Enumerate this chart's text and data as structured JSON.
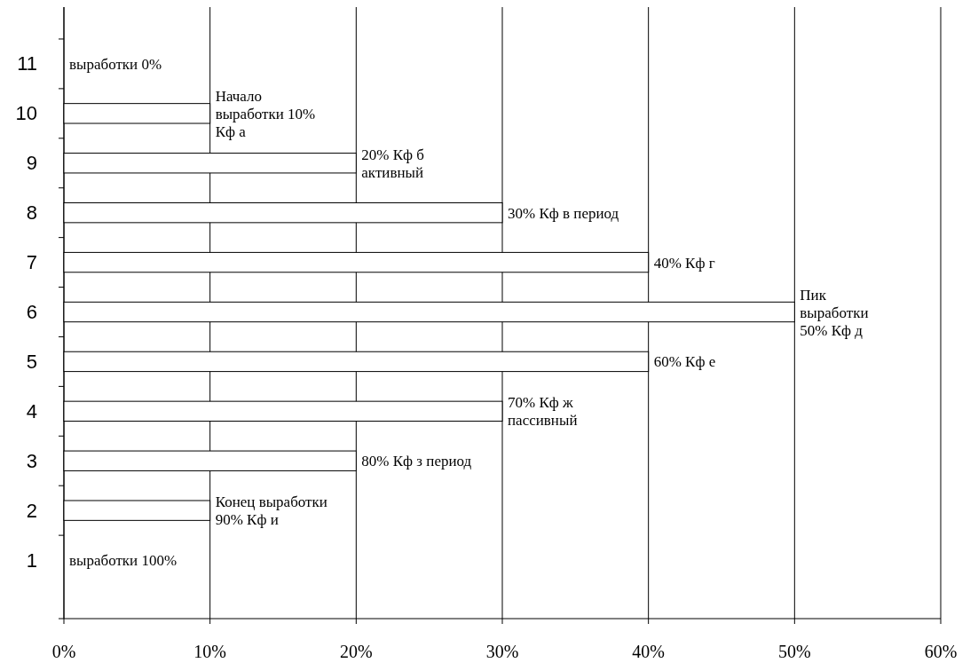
{
  "chart_data": {
    "type": "bar",
    "orientation": "horizontal",
    "categories": [
      "11",
      "10",
      "9",
      "8",
      "7",
      "6",
      "5",
      "4",
      "3",
      "2",
      "1"
    ],
    "values": [
      0,
      10,
      20,
      30,
      40,
      50,
      40,
      30,
      20,
      10,
      0
    ],
    "color": "#ffffff",
    "xlim": [
      0,
      60
    ],
    "xticks": [
      {
        "value": 0,
        "label": "0%"
      },
      {
        "value": 10,
        "label": "10%"
      },
      {
        "value": 20,
        "label": "20%"
      },
      {
        "value": 30,
        "label": "30%"
      },
      {
        "value": 40,
        "label": "40%"
      },
      {
        "value": 50,
        "label": "50%"
      },
      {
        "value": 60,
        "label": "60%"
      }
    ],
    "grid": "x",
    "annotations": [
      {
        "text": "выработки  0%",
        "x": 0,
        "y": "11"
      },
      {
        "text": "Начало\nвыработки 10%\nКф а",
        "x": 10,
        "y": "10"
      },
      {
        "text": "20% Кф б\nактивный",
        "x": 20,
        "y": "9"
      },
      {
        "text": "30% Кф в период",
        "x": 30,
        "y": "8"
      },
      {
        "text": "40% Кф г",
        "x": 40,
        "y": "7"
      },
      {
        "text": "Пик\nвыработки\n50% Кф д",
        "x": 50,
        "y": "6"
      },
      {
        "text": "60% Кф е",
        "x": 40,
        "y": "5"
      },
      {
        "text": "70% Кф ж\nпассивный",
        "x": 30,
        "y": "4"
      },
      {
        "text": "80% Кф з период",
        "x": 20,
        "y": "3"
      },
      {
        "text": "Конец выработки\n90% Кф и",
        "x": 10,
        "y": "2"
      },
      {
        "text": "выработки 100%",
        "x": 0,
        "y": "1"
      }
    ]
  }
}
